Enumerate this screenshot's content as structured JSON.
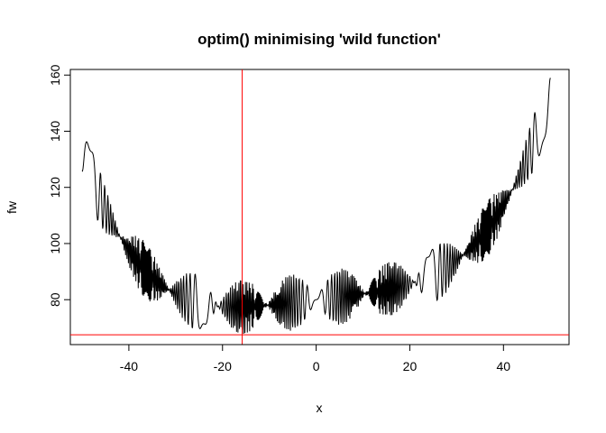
{
  "chart_data": {
    "type": "line",
    "title": "optim() minimising 'wild function'",
    "xlabel": "x",
    "ylabel": "fw",
    "xlim": [
      -52.5,
      54
    ],
    "ylim": [
      64,
      162
    ],
    "xticks": [
      -40,
      -20,
      0,
      20,
      40
    ],
    "yticks": [
      80,
      100,
      120,
      140,
      160
    ],
    "xtick_labels": [
      "-40",
      "-20",
      "0",
      "20",
      "40"
    ],
    "ytick_labels": [
      "80",
      "100",
      "120",
      "140",
      "160"
    ],
    "grid": false,
    "legend": "none",
    "series": [
      {
        "color": "#000000",
        "function": "10*sin(0.3*x)*sin(1.3*x^2) + 0.00001*x^4 + 0.2*x + 80",
        "x_range": [
          -50,
          50
        ],
        "samples": 1000
      }
    ],
    "reference_lines": [
      {
        "orientation": "vertical",
        "value": -15.8,
        "color": "#ff0000"
      },
      {
        "orientation": "horizontal",
        "value": 67.5,
        "color": "#ff0000"
      }
    ]
  }
}
